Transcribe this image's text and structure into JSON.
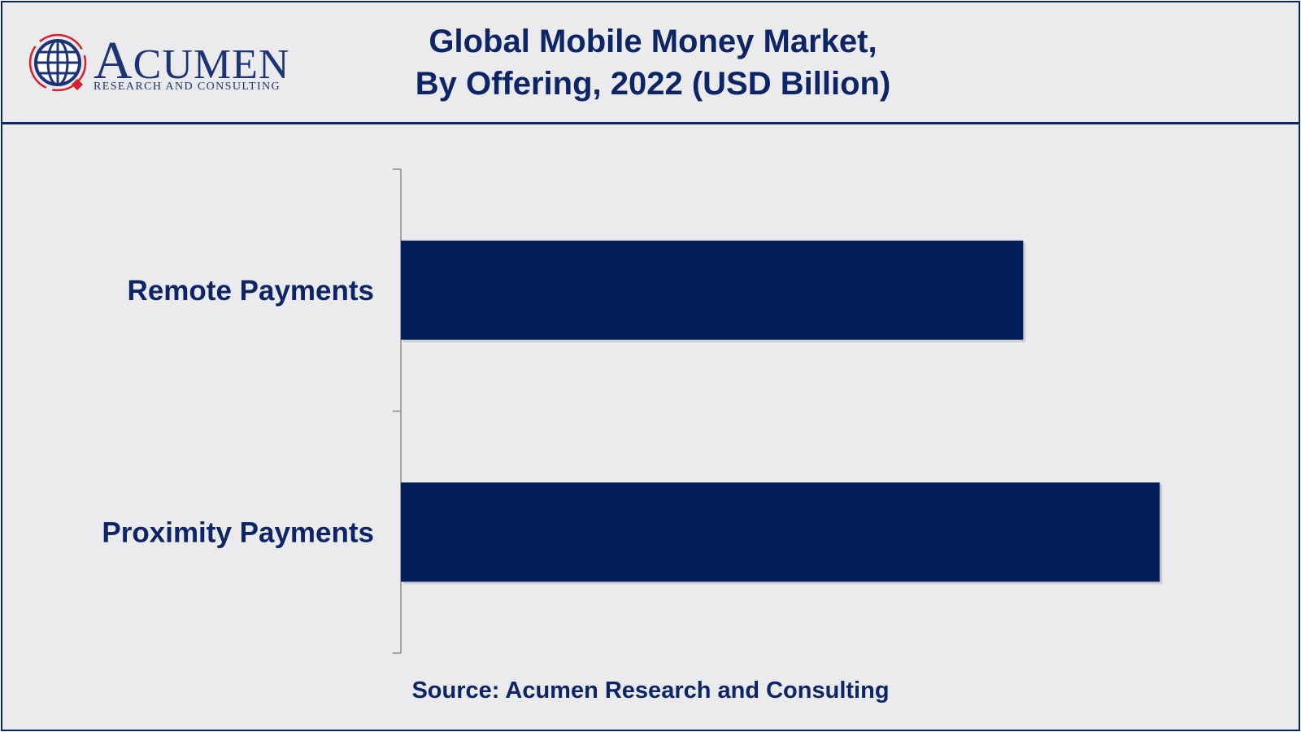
{
  "header": {
    "logo": {
      "wordmark": "ACUMEN",
      "tagline": "RESEARCH AND CONSULTING"
    },
    "title_line1": "Global Mobile Money Market,",
    "title_line2": "By Offering, 2022 (USD Billion)"
  },
  "chart_data": {
    "type": "bar",
    "orientation": "horizontal",
    "title": "Global Mobile Money Market, By Offering, 2022 (USD Billion)",
    "categories": [
      "Remote Payments",
      "Proximity Payments"
    ],
    "values": [
      82,
      100
    ],
    "xlim": [
      0,
      120
    ],
    "grid": false,
    "legend": "none",
    "bar_color": "#011e5b"
  },
  "footer": {
    "source": "Source: Acumen Research and Consulting"
  },
  "colors": {
    "navy": "#0b2566",
    "bar": "#011e5b",
    "background": "#ebebed",
    "logo_red": "#d5212e"
  }
}
